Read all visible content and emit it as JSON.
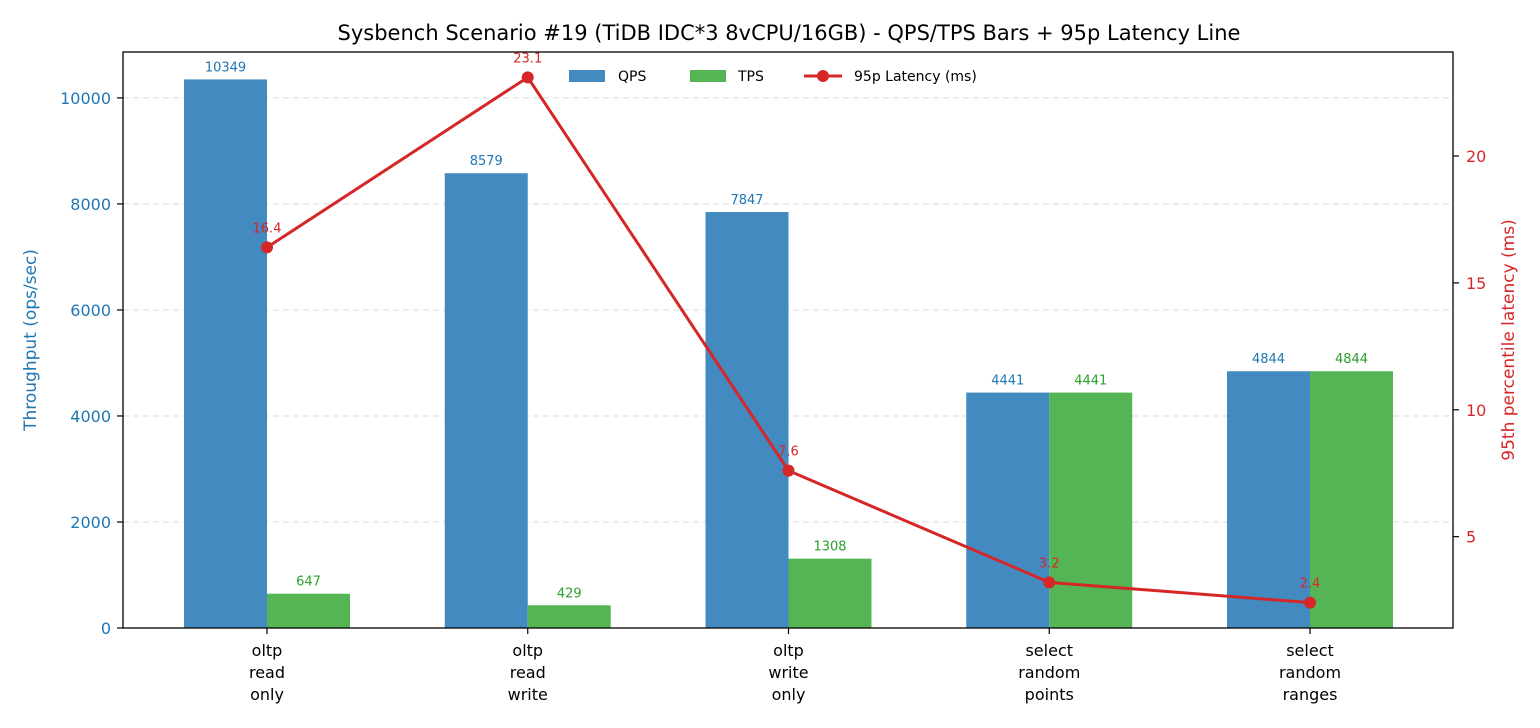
{
  "chart_data": {
    "type": "bar",
    "title": "Sysbench Scenario #19 (TiDB IDC*3 8vCPU/16GB) - QPS/TPS Bars + 95p Latency Line",
    "categories": [
      [
        "oltp",
        "read",
        "only"
      ],
      [
        "oltp",
        "read",
        "write"
      ],
      [
        "oltp",
        "write",
        "only"
      ],
      [
        "select",
        "random",
        "points"
      ],
      [
        "select",
        "random",
        "ranges"
      ]
    ],
    "series": [
      {
        "name": "QPS",
        "kind": "bar",
        "axis": "left",
        "color": "#428ac0",
        "label_color": "#1f77b4",
        "values": [
          10349,
          8579,
          7847,
          4441,
          4844
        ]
      },
      {
        "name": "TPS",
        "kind": "bar",
        "axis": "left",
        "color": "#55b555",
        "label_color": "#2ca02c",
        "values": [
          647,
          429,
          1308,
          4441,
          4844
        ]
      },
      {
        "name": "95p Latency (ms)",
        "kind": "line",
        "axis": "right",
        "color": "#d62728",
        "values": [
          16.4,
          23.1,
          7.6,
          3.2,
          2.4
        ]
      }
    ],
    "ylabel_left": "Throughput (ops/sec)",
    "ylabel_right": "95th percentile latency (ms)",
    "ylim_left": [
      0,
      10866
    ],
    "yticks_left": [
      0,
      2000,
      4000,
      6000,
      8000,
      10000
    ],
    "ylim_right": [
      1.4,
      24.1
    ],
    "yticks_right": [
      5,
      10,
      15,
      20
    ],
    "left_axis_color": "#1f77b4",
    "right_axis_color": "#d62728",
    "grid": "horizontal-dashed",
    "legend_position": "top-center"
  }
}
